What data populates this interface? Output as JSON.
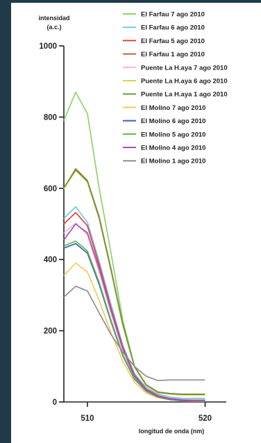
{
  "chart_data": {
    "type": "line",
    "ylabel_line1": "intensidad",
    "ylabel_line2": "(a.c.)",
    "xlabel": "longitud de onda (nm)",
    "x": [
      508,
      509,
      510,
      511,
      512,
      513,
      514,
      515,
      516,
      517,
      518,
      519,
      520
    ],
    "xticks": [
      510,
      520
    ],
    "yticks": [
      0,
      200,
      400,
      600,
      800,
      1000
    ],
    "xlim": [
      508,
      521.8
    ],
    "ylim": [
      0,
      1000
    ],
    "legend_position": "top-right",
    "series": [
      {
        "name": "El Farfau 7 ago 2010",
        "color": "#8fd36a",
        "values": [
          790,
          870,
          810,
          600,
          420,
          230,
          100,
          48,
          28,
          23,
          20,
          20,
          20
        ]
      },
      {
        "name": "El Farfau 6 ago 2010",
        "color": "#6fc9e8",
        "values": [
          515,
          548,
          505,
          395,
          275,
          160,
          80,
          40,
          22,
          14,
          10,
          10,
          10
        ]
      },
      {
        "name": "El Farfau 5 ago 2010",
        "color": "#e8403a",
        "values": [
          500,
          532,
          495,
          385,
          265,
          155,
          75,
          36,
          18,
          10,
          6,
          5,
          5
        ]
      },
      {
        "name": "El Farfau 1 ago 2010",
        "color": "#c0603a",
        "values": [
          600,
          655,
          622,
          520,
          375,
          220,
          100,
          48,
          28,
          24,
          22,
          22,
          22
        ]
      },
      {
        "name": "Puente La H.aya 7 ago 2010",
        "color": "#f1b4dc",
        "values": [
          475,
          502,
          470,
          365,
          250,
          145,
          70,
          33,
          16,
          9,
          5,
          4,
          4
        ]
      },
      {
        "name": "Puente La H.aya 6 ago 2010",
        "color": "#cfd64a",
        "values": [
          598,
          650,
          618,
          515,
          370,
          216,
          98,
          46,
          26,
          22,
          20,
          20,
          20
        ]
      },
      {
        "name": "Puente La H.aya 1 ago 2010",
        "color": "#6a9c3a",
        "values": [
          602,
          652,
          620,
          516,
          372,
          218,
          99,
          47,
          27,
          23,
          21,
          21,
          21
        ]
      },
      {
        "name": "El Molino 7 ago 2010",
        "color": "#f4cc55",
        "values": [
          355,
          390,
          365,
          285,
          195,
          115,
          55,
          25,
          12,
          6,
          3,
          2,
          2
        ]
      },
      {
        "name": "El Molino 6 ago 2010",
        "color": "#3a5cc8",
        "values": [
          432,
          445,
          418,
          330,
          226,
          130,
          64,
          30,
          14,
          7,
          4,
          3,
          3
        ]
      },
      {
        "name": "El Molino 5 ago 2010",
        "color": "#5ab846",
        "values": [
          438,
          452,
          424,
          336,
          230,
          133,
          66,
          31,
          15,
          8,
          5,
          4,
          4
        ]
      },
      {
        "name": "El Molino 4 ago 2010",
        "color": "#a54fb5",
        "values": [
          455,
          500,
          475,
          375,
          258,
          150,
          72,
          34,
          16,
          9,
          5,
          4,
          4
        ]
      },
      {
        "name": "El Molino 1 ago 2010",
        "color": "#8e8e8e",
        "values": [
          295,
          325,
          312,
          250,
          190,
          140,
          100,
          72,
          60,
          62,
          62,
          62,
          62
        ]
      }
    ]
  }
}
